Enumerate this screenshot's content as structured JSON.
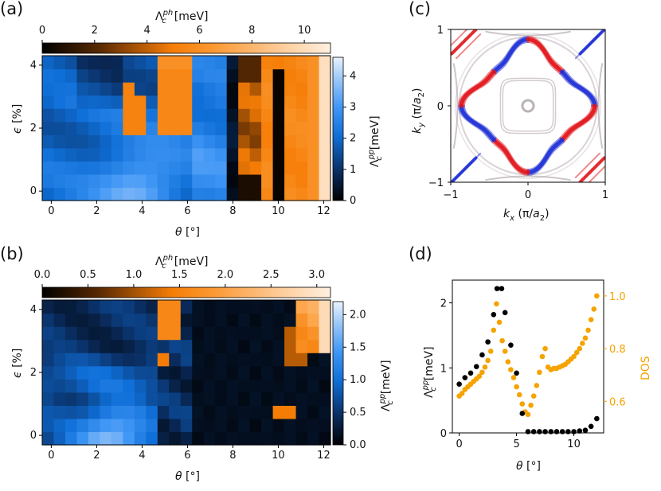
{
  "chart_data": [
    {
      "panel": "(a)",
      "type": "heatmap",
      "xlabel": "θ [°]",
      "ylabel": "ϵ [%]",
      "xlim": [
        -0.4,
        12.3
      ],
      "ylim": [
        -0.3,
        4.3
      ],
      "xticks": [
        "0",
        "2",
        "4",
        "6",
        "8",
        "10",
        "12"
      ],
      "yticks": [
        "0",
        "2",
        "4"
      ],
      "pp_colorbar": {
        "label": "Λc^pp [meV]",
        "ticks": [
          "0",
          "1",
          "2",
          "3",
          "4"
        ],
        "range": [
          0,
          4.6
        ]
      },
      "ph_colorbar": {
        "label": "Λc^ph [meV]",
        "ticks": [
          "0",
          "2",
          "4",
          "6",
          "8",
          "10"
        ],
        "range": [
          0,
          11
        ]
      },
      "theta_values": [
        0,
        0.5,
        1,
        1.5,
        2,
        2.5,
        3,
        3.5,
        4,
        4.5,
        5,
        5.5,
        6,
        6.5,
        7,
        7.5,
        8,
        8.5,
        9,
        9.5,
        10,
        10.5,
        11,
        11.5,
        12
      ],
      "epsilon_values": [
        0,
        0.4,
        0.8,
        1.2,
        1.6,
        2,
        2.4,
        2.8,
        3.2,
        3.6,
        4
      ],
      "phonon_dominated_cells": "orange cells between θ≈3.3–4.5 (ϵ 1.9–3.4), θ≈5–6.3, and θ≥8.4",
      "pp_peak_meV": 4.5,
      "ph_peak_meV": 11
    },
    {
      "panel": "(b)",
      "type": "heatmap",
      "xlabel": "θ [°]",
      "ylabel": "ϵ [%]",
      "xlim": [
        -0.4,
        12.3
      ],
      "ylim": [
        -0.3,
        4.3
      ],
      "xticks": [
        "0",
        "2",
        "4",
        "6",
        "8",
        "10",
        "12"
      ],
      "yticks": [
        "0",
        "2",
        "4"
      ],
      "pp_colorbar": {
        "label": "Λc^pp [meV]",
        "ticks": [
          "0.0",
          "0.5",
          "1.0",
          "1.5",
          "2.0"
        ],
        "range": [
          0,
          2.2
        ]
      },
      "ph_colorbar": {
        "label": "Λc^ph [meV]",
        "ticks": [
          "0.0",
          "0.5",
          "1.0",
          "1.5",
          "2.0",
          "2.5",
          "3.0"
        ],
        "range": [
          0,
          3.15
        ]
      },
      "pp_peak_meV": 2.1,
      "ph_peak_meV": 3.1
    },
    {
      "panel": "(c)",
      "type": "heatmap",
      "xlabel": "kx (π/a2)",
      "ylabel": "ky (π/a2)",
      "xlim": [
        -1,
        1
      ],
      "ylim": [
        -1,
        1
      ],
      "xticks": [
        "−1",
        "0",
        "1"
      ],
      "yticks": [
        "−1",
        "0",
        "1"
      ],
      "description_colors": {
        "positive": "#e0141a",
        "negative": "#1f2fd6"
      }
    },
    {
      "panel": "(d)",
      "type": "scatter",
      "xlabel": "θ [°]",
      "ylabel": "Λc^pp [meV]",
      "ylabel2": "DOS",
      "xlim": [
        -0.6,
        12.6
      ],
      "ylim": [
        0,
        2.35
      ],
      "ylim2": [
        0.48,
        1.06
      ],
      "xticks": [
        "0",
        "5",
        "10"
      ],
      "yticks": [
        "0",
        "1",
        "2"
      ],
      "yticks2": [
        "0.6",
        "0.8",
        "1.0"
      ],
      "series": [
        {
          "name": "Λc^pp",
          "color": "#000000",
          "x": [
            0,
            0.5,
            1,
            1.5,
            2,
            2.5,
            3,
            3.3,
            3.7,
            4,
            4.5,
            5,
            5.5,
            6,
            6.5,
            7,
            7.5,
            8,
            8.5,
            9,
            9.5,
            10,
            10.5,
            11,
            11.5,
            12
          ],
          "y": [
            0.75,
            0.85,
            0.92,
            1.02,
            1.2,
            1.4,
            1.82,
            2.22,
            2.22,
            1.85,
            1.35,
            0.92,
            0.3,
            0.02,
            0.02,
            0.02,
            0.02,
            0.02,
            0.02,
            0.02,
            0.02,
            0.02,
            0.03,
            0.04,
            0.1,
            0.22
          ]
        },
        {
          "name": "DOS",
          "color": "#f5a300",
          "x": [
            0,
            0.25,
            0.5,
            0.75,
            1,
            1.25,
            1.5,
            1.75,
            2,
            2.25,
            2.5,
            2.75,
            3,
            3.25,
            3.5,
            3.75,
            4,
            4.25,
            4.5,
            4.75,
            5,
            5.25,
            5.5,
            5.75,
            6,
            6.25,
            6.5,
            6.75,
            7,
            7.25,
            7.5,
            7.75,
            8,
            8.25,
            8.5,
            8.75,
            9,
            9.25,
            9.5,
            9.75,
            10,
            10.25,
            10.5,
            10.75,
            11,
            11.25,
            11.5,
            11.75,
            12
          ],
          "y": [
            0.62,
            0.63,
            0.645,
            0.655,
            0.665,
            0.675,
            0.685,
            0.695,
            0.71,
            0.73,
            0.755,
            0.79,
            0.87,
            0.97,
            0.9,
            0.83,
            0.79,
            0.75,
            0.72,
            0.69,
            0.655,
            0.625,
            0.59,
            0.56,
            0.55,
            0.585,
            0.62,
            0.66,
            0.71,
            0.77,
            0.8,
            0.73,
            0.72,
            0.725,
            0.725,
            0.73,
            0.735,
            0.74,
            0.75,
            0.76,
            0.77,
            0.785,
            0.8,
            0.82,
            0.84,
            0.87,
            0.91,
            0.95,
            1.0
          ]
        }
      ]
    }
  ],
  "labels": {
    "a": "(a)",
    "b": "(b)",
    "c": "(c)",
    "d": "(d)",
    "ph_bar_a": "Λ",
    "ph_unit": "[meV]",
    "pp_unit": "[meV]"
  }
}
